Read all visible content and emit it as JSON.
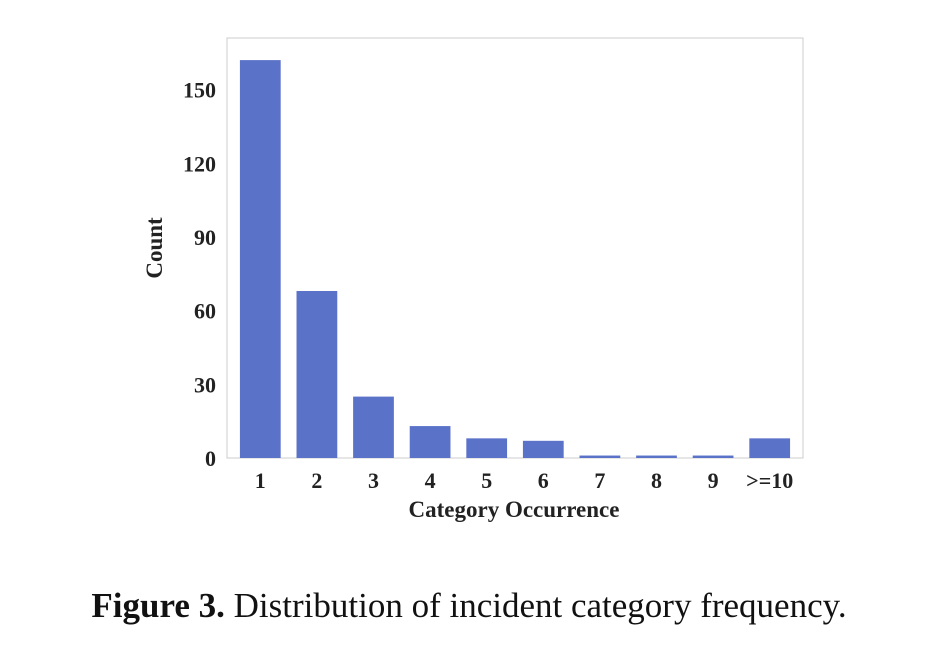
{
  "chart_data": {
    "type": "bar",
    "categories": [
      "1",
      "2",
      "3",
      "4",
      "5",
      "6",
      "7",
      "8",
      "9",
      ">=10"
    ],
    "values": [
      162,
      68,
      25,
      13,
      8,
      7,
      1,
      1,
      1,
      8
    ],
    "title": "",
    "xlabel": "Category Occurrence",
    "ylabel": "Count",
    "ylim": [
      0,
      171
    ],
    "yticks": [
      0,
      30,
      60,
      90,
      120,
      150
    ],
    "grid": false,
    "bar_color": "#5b72c9",
    "frame_color": "#cccccc"
  },
  "caption": {
    "label": "Figure 3.",
    "text": "Distribution of incident category frequency."
  }
}
